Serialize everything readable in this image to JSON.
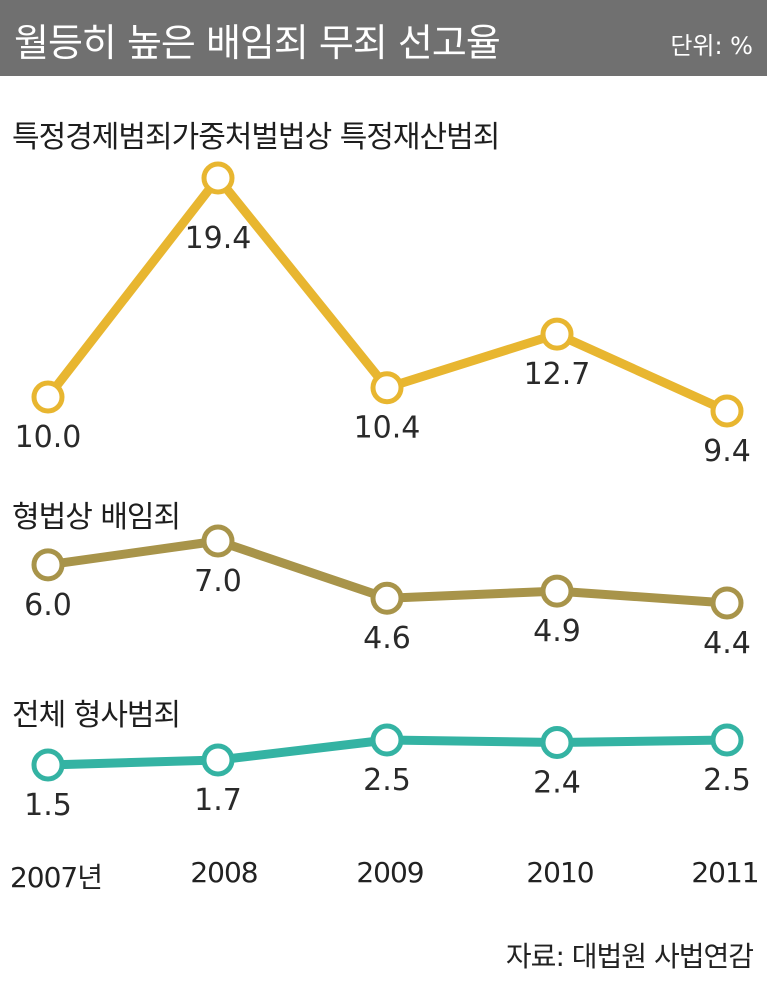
{
  "header": {
    "title": "월등히 높은 배임죄 무죄 선고율",
    "unit": "단위: %"
  },
  "source": "자료: 대법원 사법연감",
  "colors": {
    "series1": "#e8b630",
    "series2": "#a8944a",
    "series3": "#34b3a3",
    "header_bg": "#707070"
  },
  "chart_data": {
    "type": "line",
    "categories": [
      "2007년",
      "2008",
      "2009",
      "2010",
      "2011"
    ],
    "series": [
      {
        "name": "특정경제범죄가중처벌법상 특정재산범죄",
        "values": [
          10.0,
          19.4,
          10.4,
          12.7,
          9.4
        ],
        "labels": [
          "10.0",
          "19.4",
          "10.4",
          "12.7",
          "9.4"
        ],
        "color": "#e8b630"
      },
      {
        "name": "형법상 배임죄",
        "values": [
          6.0,
          7.0,
          4.6,
          4.9,
          4.4
        ],
        "labels": [
          "6.0",
          "7.0",
          "4.6",
          "4.9",
          "4.4"
        ],
        "color": "#a8944a"
      },
      {
        "name": "전체 형사범죄",
        "values": [
          1.5,
          1.7,
          2.5,
          2.4,
          2.5
        ],
        "labels": [
          "1.5",
          "1.7",
          "2.5",
          "2.4",
          "2.5"
        ],
        "color": "#34b3a3"
      }
    ],
    "legend": "inline-above-each-series",
    "grid": false
  }
}
